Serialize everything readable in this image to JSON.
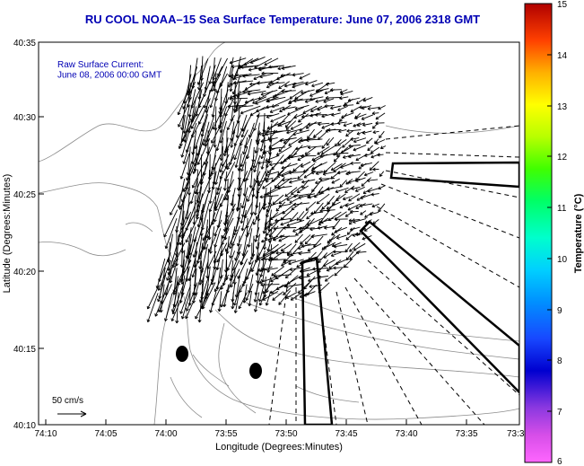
{
  "title": "RU COOL  NOAA–15  Sea Surface Temperature:  June 07, 2006 2318 GMT",
  "annotation": {
    "line1": "Raw Surface Current:",
    "line2": "June 08, 2006 00:00 GMT"
  },
  "scale_label": "50 cm/s",
  "x_axis": {
    "label": "Longitude (Degrees:Minutes)",
    "ticks": [
      "74:10",
      "74:05",
      "74:00",
      "73:55",
      "73:50",
      "73:45",
      "73:40",
      "73:35",
      "73:3"
    ]
  },
  "y_axis": {
    "label": "Latitude (Degrees:Minutes)",
    "ticks": [
      "40:35",
      "40:30",
      "40:25",
      "40:20",
      "40:15",
      "40:10"
    ]
  },
  "colorbar": {
    "label": "Temperature (°C)",
    "ticks": [
      "15",
      "14",
      "13",
      "12",
      "11",
      "10",
      "9",
      "8",
      "7",
      "6"
    ],
    "range": [
      6,
      15
    ]
  },
  "colors": {
    "title": "#0000b4",
    "annotation": "#0000b4",
    "frame": "#000000",
    "contour": "#888888"
  },
  "map_bounds": {
    "lon_min_deg": -74.1667,
    "lon_max_deg": -73.5,
    "lat_min_deg": 40.1667,
    "lat_max_deg": 40.5833
  }
}
